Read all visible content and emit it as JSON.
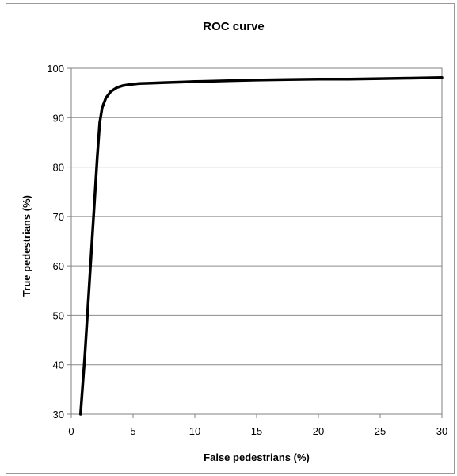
{
  "chart_data": {
    "type": "line",
    "title": "ROC curve",
    "xlabel": "False pedestrians (%)",
    "ylabel": "True pedestrians (%)",
    "xlim": [
      0,
      30
    ],
    "ylim": [
      30,
      100
    ],
    "xticks": [
      "0",
      "5",
      "10",
      "15",
      "20",
      "25",
      "30"
    ],
    "yticks": [
      "30",
      "40",
      "50",
      "60",
      "70",
      "80",
      "90",
      "100"
    ],
    "grid": "horizontal",
    "legend": "none",
    "series": [
      {
        "color": "#000000",
        "x": [
          0.75,
          0.9,
          1.1,
          1.35,
          1.6,
          1.85,
          2.1,
          2.3,
          2.5,
          2.8,
          3.2,
          3.7,
          4.2,
          4.7,
          5.5,
          6.5,
          7.5,
          9.0,
          10.0,
          11.5,
          13.0,
          15.0,
          17.5,
          20.0,
          22.5,
          25.0,
          27.5,
          30.0
        ],
        "y": [
          30,
          35,
          42,
          52,
          62,
          72,
          82,
          89,
          92,
          94,
          95.3,
          96.1,
          96.5,
          96.7,
          96.9,
          97.0,
          97.1,
          97.2,
          97.3,
          97.4,
          97.5,
          97.6,
          97.7,
          97.8,
          97.8,
          97.9,
          98.0,
          98.1
        ]
      }
    ]
  }
}
